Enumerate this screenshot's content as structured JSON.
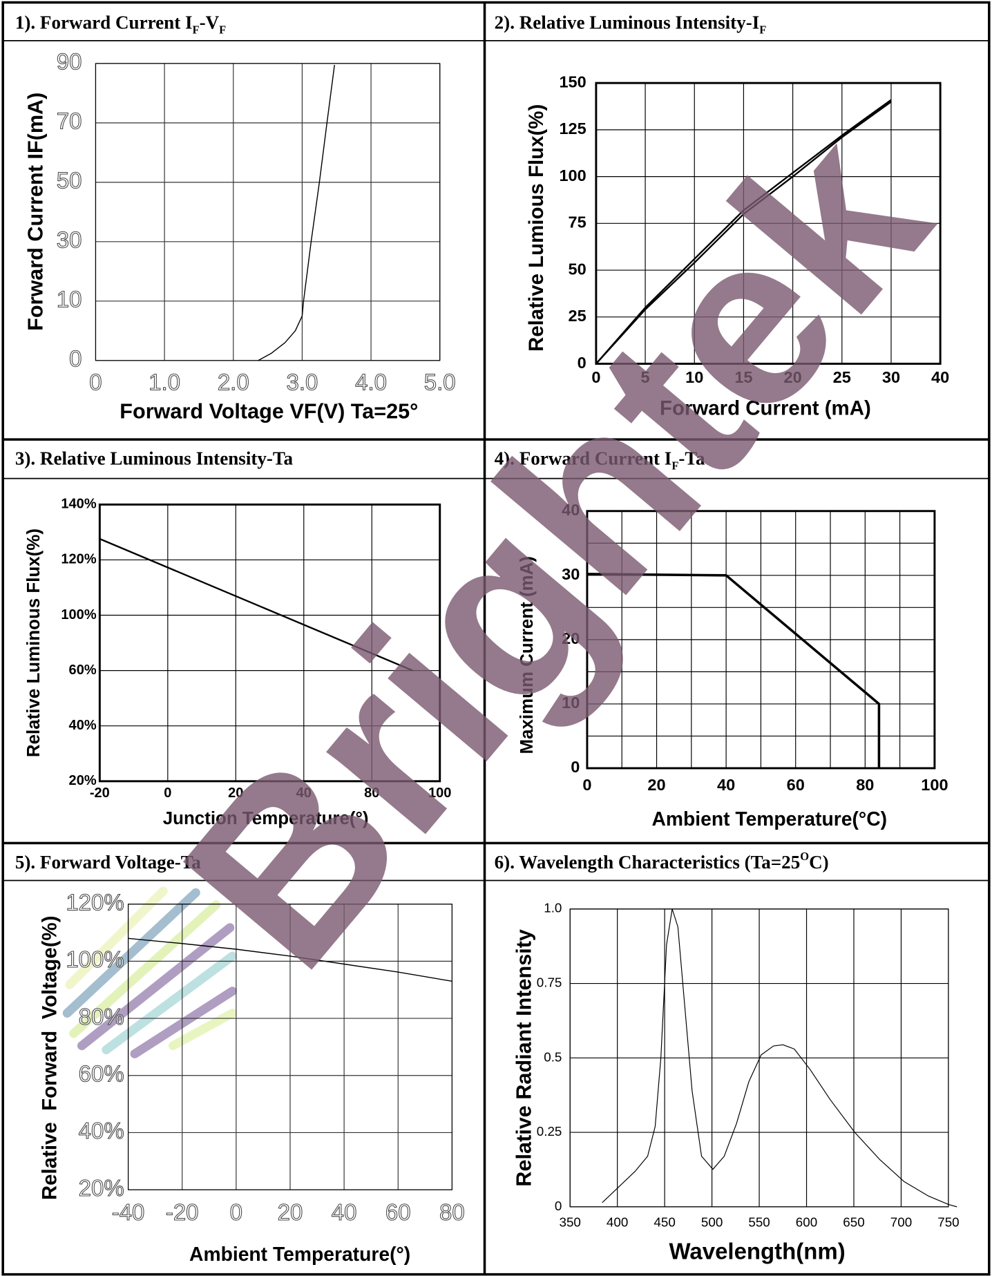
{
  "watermark": "Brightek",
  "chart_data": [
    {
      "type": "line",
      "title": [
        {
          "text": "1). Forward Current I"
        },
        {
          "text": "F",
          "script": "sub"
        },
        {
          "text": "-V"
        },
        {
          "text": "F",
          "script": "sub"
        }
      ],
      "xlabel": "Forward Voltage VF(V) Ta=25°",
      "ylabel": "Forward Current IF(mA)",
      "x": [
        2.36,
        2.55,
        2.75,
        2.9,
        3.0,
        3.02,
        3.13,
        3.25,
        3.36,
        3.47
      ],
      "series": [
        {
          "color": "#000000",
          "values": [
            0,
            1.2,
            3,
            5,
            7.5,
            10,
            30,
            50,
            70,
            89.5
          ]
        }
      ],
      "xlim": [
        0,
        5
      ],
      "ylim": [
        0,
        90
      ],
      "xticks": [
        0,
        {
          "value": 1,
          "label": "1.0"
        },
        {
          "value": 2,
          "label": "2.0"
        },
        {
          "value": 3,
          "label": "3.0"
        },
        {
          "value": 4,
          "label": "4.0"
        },
        {
          "value": 5,
          "label": "5.0"
        }
      ],
      "yticks": [
        0,
        10,
        30,
        50,
        70,
        90
      ],
      "y_scale": "tick-spaced",
      "grid": true
    },
    {
      "type": "line",
      "title": [
        {
          "text": "2). Relative Luminous Intensity-I"
        },
        {
          "text": "F",
          "script": "sub"
        }
      ],
      "xlabel": "Forward Current (mA)",
      "ylabel": "Relative Lumious Flux(%)",
      "x": [
        0,
        5,
        10,
        15,
        20,
        25,
        30
      ],
      "series": [
        {
          "color": "#000000",
          "values": [
            0,
            29,
            54,
            80,
            100,
            121,
            140
          ]
        },
        {
          "color": "#000000",
          "values": [
            0,
            30,
            56,
            82,
            102,
            122,
            141
          ]
        }
      ],
      "xlim": [
        0,
        40
      ],
      "ylim": [
        0,
        150
      ],
      "xticks": [
        0,
        5,
        10,
        15,
        20,
        25,
        30,
        40
      ],
      "x_scale": "tick-spaced",
      "yticks": [
        0,
        25,
        50,
        75,
        100,
        125,
        150
      ],
      "grid": true
    },
    {
      "type": "line",
      "title": [
        {
          "text": "3). Relative Luminous Intensity-Ta"
        }
      ],
      "xlabel": "Junction Temperature(°)",
      "ylabel": "Relative Luminous Flux(%)",
      "x": [
        -20,
        92
      ],
      "series": [
        {
          "color": "#000000",
          "values": [
            127.6,
            60
          ]
        }
      ],
      "xlim": [
        -20,
        100
      ],
      "ylim": [
        20,
        140
      ],
      "xticks": [
        -20,
        0,
        20,
        40,
        80,
        100
      ],
      "x_scale": "tick-spaced",
      "yticks": [
        {
          "value": 20,
          "label": "20%"
        },
        {
          "value": 40,
          "label": "40%"
        },
        {
          "value": 60,
          "label": "60%"
        },
        {
          "value": 100,
          "label": "100%"
        },
        {
          "value": 120,
          "label": "120%"
        },
        {
          "value": 140,
          "label": "140%"
        }
      ],
      "y_scale": "tick-spaced",
      "grid": true
    },
    {
      "type": "line",
      "title": [
        {
          "text": "4). Forward Current I"
        },
        {
          "text": "F",
          "script": "sub"
        },
        {
          "text": "-Ta"
        }
      ],
      "xlabel": "Ambient Temperature(°C)",
      "ylabel": "Maximum Current (mA)",
      "x": [
        0,
        40,
        84,
        84
      ],
      "series": [
        {
          "color": "#000000",
          "values": [
            30.2,
            30,
            10,
            0
          ]
        }
      ],
      "xlim": [
        0,
        100
      ],
      "ylim": [
        0,
        40
      ],
      "xticks": [
        0,
        20,
        40,
        60,
        80,
        100
      ],
      "yticks": [
        0,
        10,
        20,
        30,
        40
      ],
      "minor_xticks": [
        10,
        30,
        50,
        70,
        90
      ],
      "minor_yticks": [
        5,
        15,
        25,
        35
      ],
      "grid": true
    },
    {
      "type": "line",
      "title": [
        {
          "text": "5). Forward Voltage-Ta"
        }
      ],
      "xlabel": "Ambient Temperature(°)",
      "ylabel": "Relative  Forward  Voltage(%)",
      "x": [
        -40,
        -20,
        0,
        20,
        40,
        60,
        80
      ],
      "series": [
        {
          "color": "#000000",
          "values": [
            108,
            106.2,
            104.2,
            101.8,
            99,
            96.2,
            93
          ]
        }
      ],
      "xlim": [
        -40,
        80
      ],
      "ylim": [
        20,
        120
      ],
      "xticks": [
        -40,
        -20,
        0,
        20,
        40,
        60,
        80
      ],
      "yticks": [
        {
          "value": 20,
          "label": "20%"
        },
        {
          "value": 40,
          "label": "40%"
        },
        {
          "value": 60,
          "label": "60%"
        },
        {
          "value": 80,
          "label": "80%"
        },
        {
          "value": 100,
          "label": "100%"
        },
        {
          "value": 120,
          "label": "120%"
        }
      ],
      "grid": true
    },
    {
      "type": "line",
      "title": [
        {
          "text": "6). Wavelength Characteristics (Ta=25"
        },
        {
          "text": "O",
          "script": "super"
        },
        {
          "text": "C)"
        }
      ],
      "xlabel": "Wavelength(nm)",
      "ylabel": "Relative Radiant Intensity",
      "x": [
        384,
        419,
        432,
        440,
        446,
        452,
        458,
        464,
        470,
        479,
        489,
        501,
        513,
        526,
        539,
        552,
        565,
        575,
        587,
        604,
        625,
        651,
        677,
        703,
        729,
        750,
        759
      ],
      "series": [
        {
          "color": "#000000",
          "values": [
            0.014,
            0.12,
            0.17,
            0.27,
            0.5,
            0.88,
            1.0,
            0.94,
            0.72,
            0.39,
            0.17,
            0.126,
            0.17,
            0.28,
            0.42,
            0.51,
            0.54,
            0.544,
            0.53,
            0.46,
            0.36,
            0.25,
            0.16,
            0.085,
            0.036,
            0.008,
            0
          ]
        }
      ],
      "xlim": [
        350,
        750
      ],
      "ylim": [
        0,
        1
      ],
      "xticks": [
        350,
        400,
        450,
        500,
        550,
        600,
        650,
        700,
        750
      ],
      "yticks": [
        0,
        0.25,
        0.5,
        0.75,
        {
          "value": 1,
          "label": "1.0"
        }
      ],
      "grid": true
    }
  ]
}
